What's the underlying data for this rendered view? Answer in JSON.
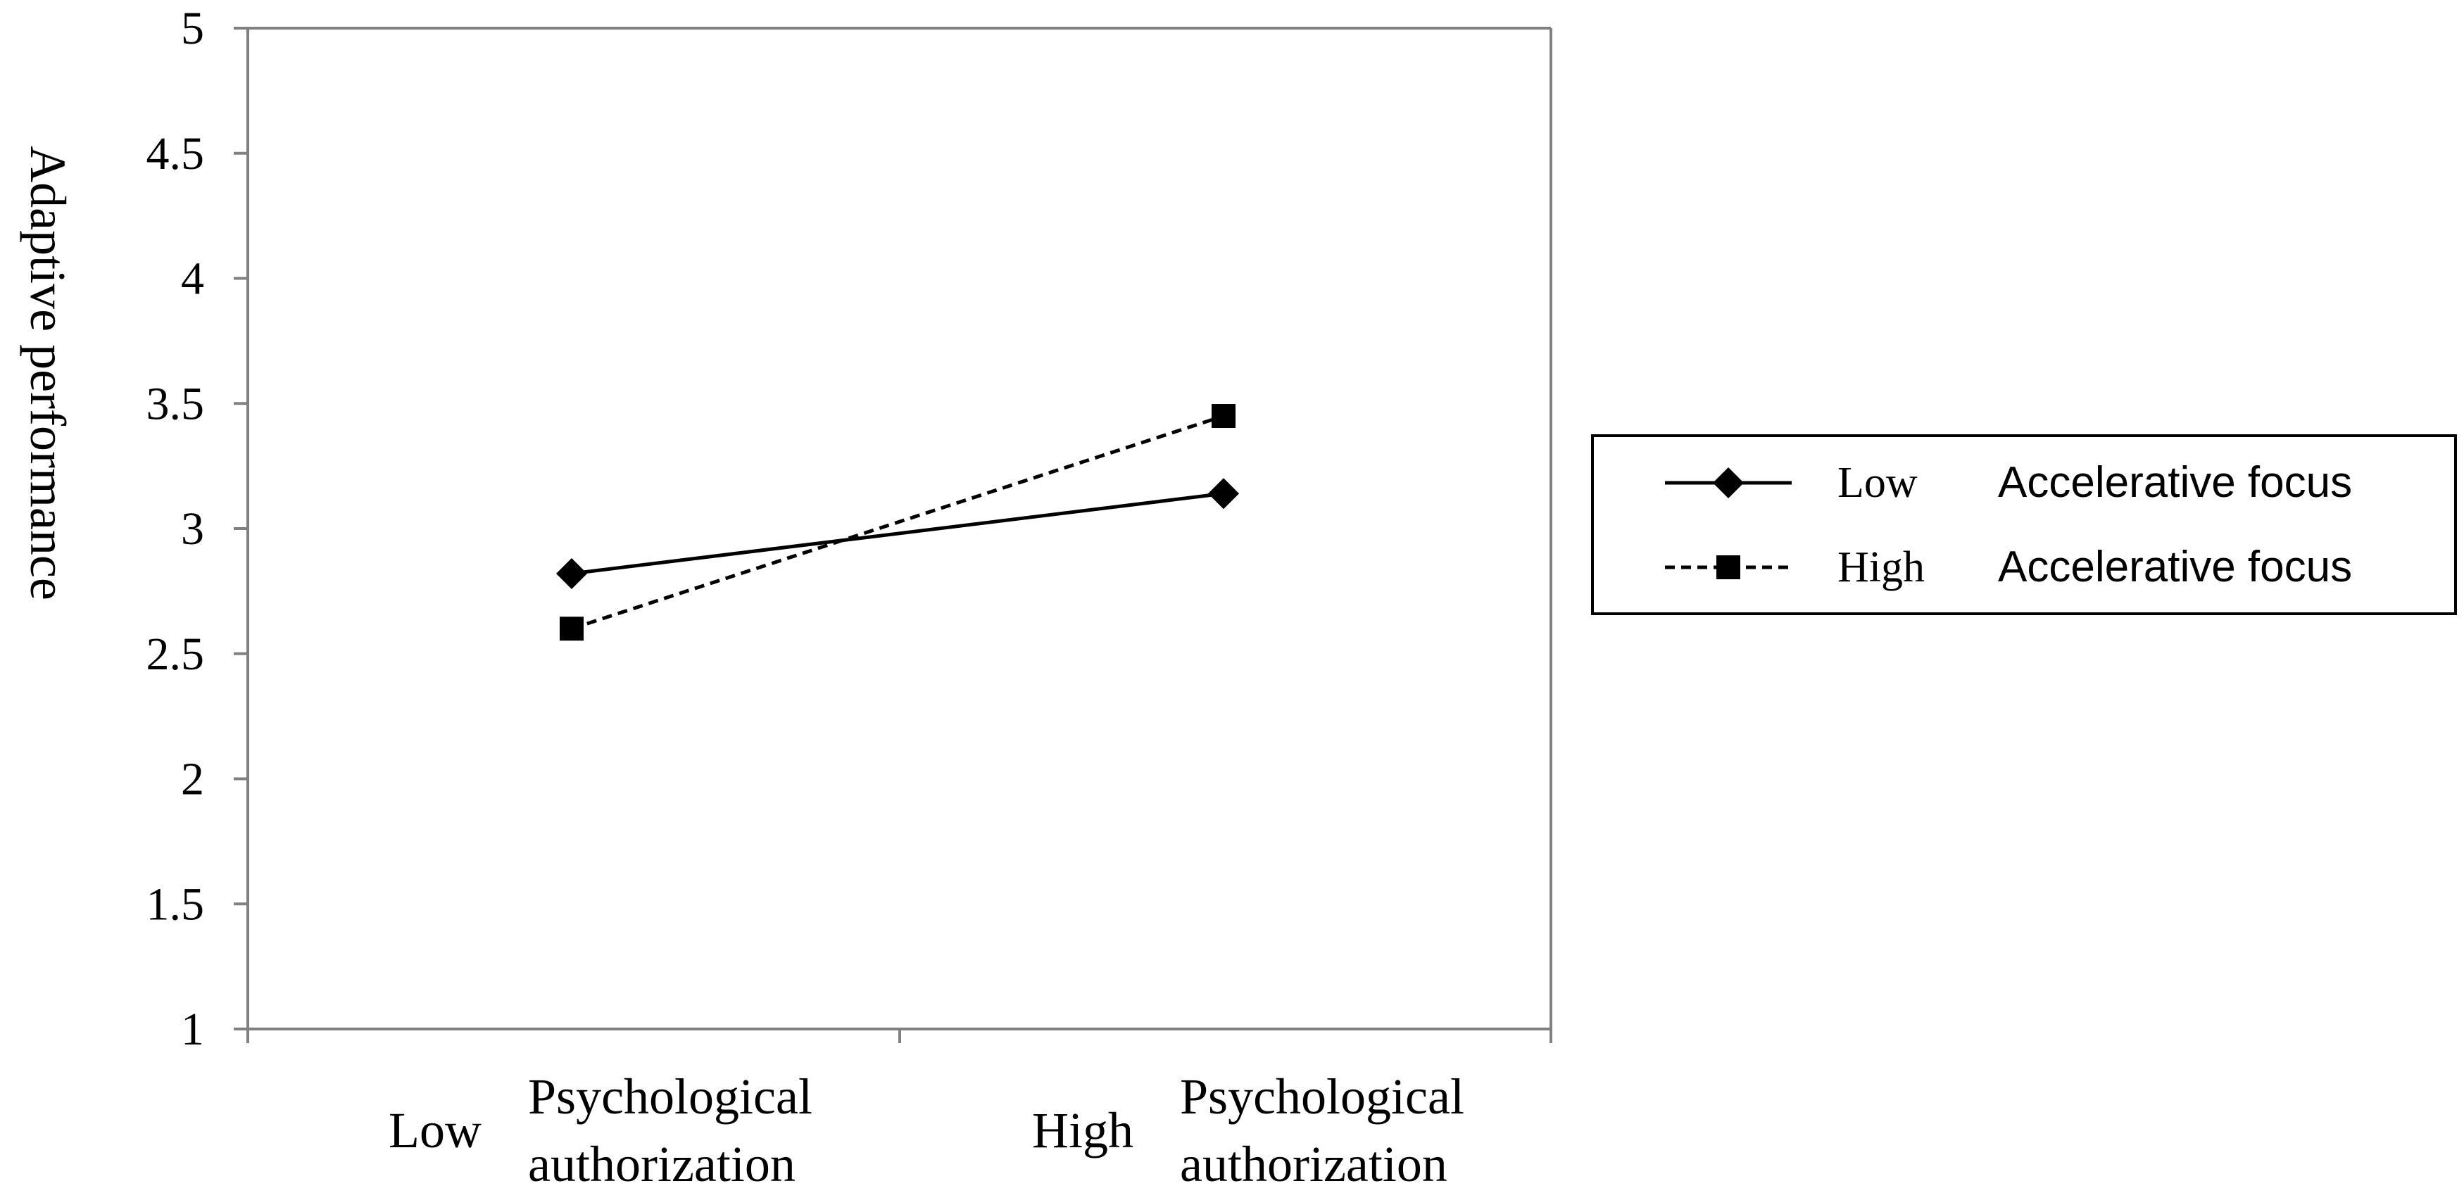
{
  "chart_data": {
    "type": "line",
    "ylabel": "Adaptive performance",
    "ylim": [
      1,
      5
    ],
    "y_ticks": [
      "1",
      "1.5",
      "2",
      "2.5",
      "3",
      "3.5",
      "4",
      "4.5",
      "5"
    ],
    "categories": [
      {
        "level": "Low",
        "line1": "Psychological",
        "line2": "authorization"
      },
      {
        "level": "High",
        "line1": "Psychological",
        "line2": "authorization"
      }
    ],
    "series": [
      {
        "level": "Low",
        "name": "Accelerative focus",
        "marker": "diamond",
        "line_style": "solid",
        "values": [
          2.82,
          3.14
        ]
      },
      {
        "level": "High",
        "name": "Accelerative focus",
        "marker": "square",
        "line_style": "dashed",
        "values": [
          2.6,
          3.45
        ]
      }
    ],
    "legend_position": "right",
    "grid": false,
    "colors": {
      "line": "#000000",
      "axis": "#808080",
      "ylabel": "#1f2a44"
    }
  }
}
